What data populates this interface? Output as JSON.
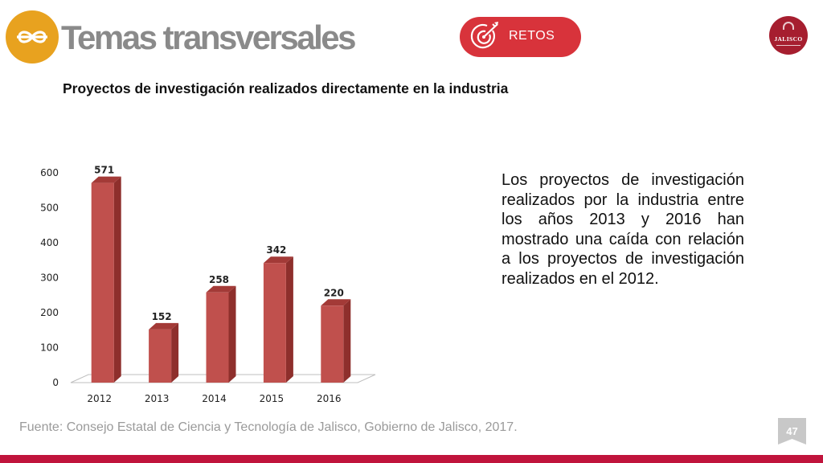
{
  "header": {
    "title": "Temas transversales",
    "logo_icon": "infinity-icon",
    "logo_color": "#e8a21f",
    "pill": {
      "label": "RETOS",
      "icon": "target-arrow-icon",
      "color": "#d8333b"
    },
    "seal": {
      "label": "JALISCO",
      "icon": "jalisco-seal-icon",
      "color": "#a61e2f"
    }
  },
  "subtitle": "Proyectos de investigación realizados directamente en la industria",
  "description": "Los proyectos de investigación realizados por la industria entre los años 2013 y 2016 han mostrado una caída con relación a los  proyectos de investigación realizados en el 2012.",
  "footer": {
    "source": "Fuente: Consejo Estatal de Ciencia y Tecnología de Jalisco, Gobierno de Jalisco, 2017.",
    "page_number": "47",
    "bar_color": "#c0143c"
  },
  "chart_data": {
    "type": "bar",
    "style": "3d",
    "categories": [
      "2012",
      "2013",
      "2014",
      "2015",
      "2016"
    ],
    "values": [
      571,
      152,
      258,
      342,
      220
    ],
    "data_labels": [
      "571",
      "152",
      "258",
      "342",
      "220"
    ],
    "ylim": [
      0,
      600
    ],
    "yticks": [
      "0",
      "100",
      "200",
      "300",
      "400",
      "500",
      "600"
    ],
    "title": "",
    "xlabel": "",
    "ylabel": "",
    "grid": false,
    "legend": "none",
    "bar_color": "#c0504d"
  }
}
